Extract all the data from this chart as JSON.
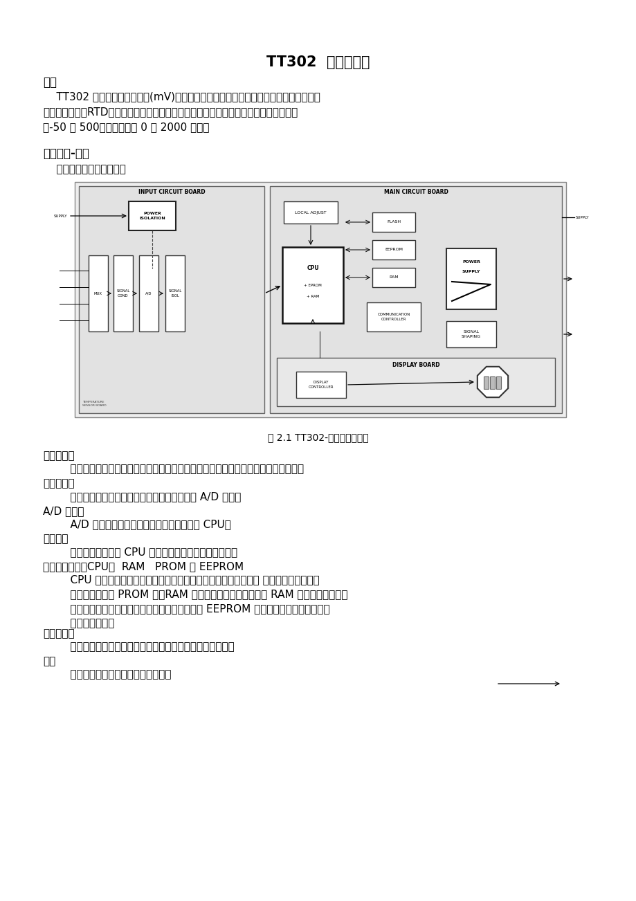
{
  "title": "TT302  温度变送器",
  "bg_color": "#ffffff",
  "text_color": "#000000",
  "section1_header": "概述",
  "section1_body": "    TT302 温度变送器接收毫伏(mV)输出的信号，这类传感器包括热电偶或阻性传感器，\n例如：热电阻（RTD）。它所接受的信号必须在允许的输入范围之内。允许输入电压范围\n为-50 到 500，电阻范围为 0 到 2000 欧姆。",
  "section2_header": "功能描述-硬件",
  "section2_intro": "    每个板的功能介绍如下：",
  "fig_caption": "图 2.1 TT302-硬件构成方框图",
  "section3_items": [
    {
      "heading": "多路转换器",
      "body": "    多路转换器将变送器端子接到相应信号调理板上，以保证在正确的端子上测量电压。"
    },
    {
      "heading": "信号调理板",
      "body": "    他的作用给输入信号提供一个正确的值以满足 A/D 转换。"
    },
    {
      "heading": "A/D 转换器",
      "body": "    A/D 转换器将输入信号转换成数字形式传给 CPU。"
    },
    {
      "heading": "信号隔离",
      "body": "    他的作用在输入和 CPU 之间隔离控制信号和数字信号。"
    },
    {
      "heading": "中央处理单元（CPU）  RAM   PROM 和 EEPROM",
      "body": "    CPU 是变送器的智能部分，主要完成测量，板的执行，自诊断和 通信的管理和运行。\n    系统程序存储在 PROM 中。RAM 用于暂时存放运算数据。在 RAM 中存放的数据一旦\n    断电立即消失，所以数据必须保存在不易丢失的 EEPROM 中。例如：标定，块的标识\n    和组态等数据。"
    },
    {
      "heading": "通信控制器",
      "body": "    监视在线动态，调整通信信号，插入，删除预处理，滤波。"
    },
    {
      "heading": "电源",
      "body": "    变送器电路通过现场总线电源供电。"
    }
  ]
}
